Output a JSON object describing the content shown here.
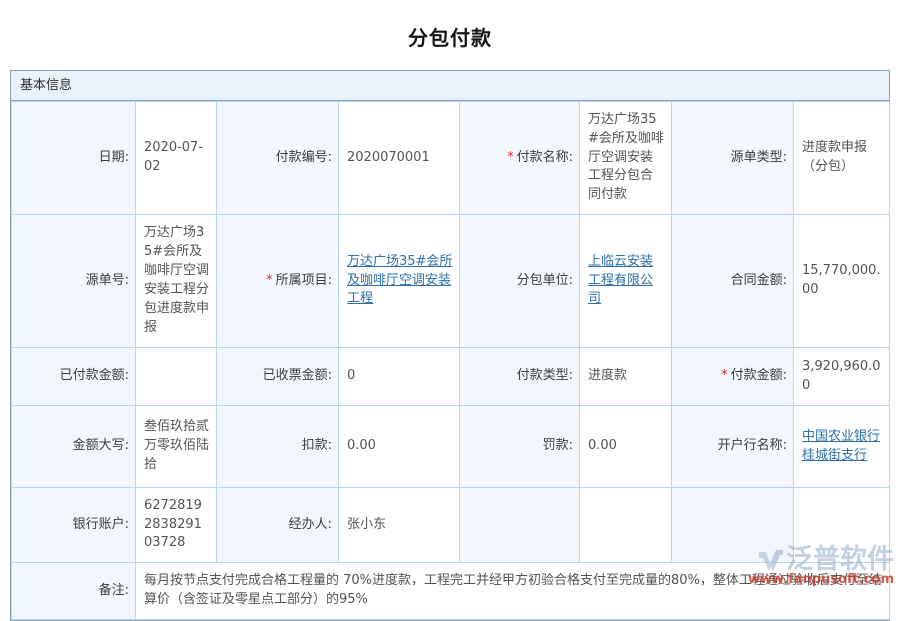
{
  "page": {
    "title": "分包付款"
  },
  "panel": {
    "header": "基本信息"
  },
  "form": {
    "rows": [
      {
        "cells": [
          {
            "label": "日期:",
            "value": "2020-07-02"
          },
          {
            "label": "付款编号:",
            "value": "2020070001"
          },
          {
            "label": "付款名称:",
            "mark": "*",
            "value": "万达广场35#会所及咖啡厅空调安装工程分包合同付款"
          },
          {
            "label": "源单类型:",
            "value": "进度款申报（分包）"
          }
        ]
      },
      {
        "cells": [
          {
            "label": "源单号:",
            "value": "万达广场35#会所及咖啡厅空调安装工程分包进度款申报"
          },
          {
            "label": "所属项目:",
            "mark": "*",
            "value": "万达广场35#会所及咖啡厅空调安装工程",
            "link": true
          },
          {
            "label": "分包单位:",
            "value": "上临云安装工程有限公司",
            "link": true
          },
          {
            "label": "合同金额:",
            "value": "15,770,000.00"
          }
        ]
      },
      {
        "cells": [
          {
            "label": "已付款金额:",
            "value": ""
          },
          {
            "label": "已收票金额:",
            "value": "0"
          },
          {
            "label": "付款类型:",
            "value": "进度款"
          },
          {
            "label": "付款金额:",
            "mark": "*",
            "value": "3,920,960.00"
          }
        ]
      },
      {
        "cells": [
          {
            "label": "金额大写:",
            "value": "叁佰玖拾贰万零玖佰陆拾"
          },
          {
            "label": "扣款:",
            "value": "0.00"
          },
          {
            "label": "罚款:",
            "value": "0.00"
          },
          {
            "label": "开户行名称:",
            "value": "中国农业银行桂城街支行",
            "link": true
          }
        ]
      },
      {
        "cells": [
          {
            "label": "银行账户:",
            "value": "6272819283829103728"
          },
          {
            "label": "经办人:",
            "value": "张小东"
          },
          {
            "label": "",
            "value": ""
          },
          {
            "label": "",
            "value": ""
          }
        ]
      }
    ],
    "remark": {
      "label": "备注:",
      "value": "每月按节点支付完成合格工程量的 70%进度款，工程完工并经甲方初验合格支付至完成量的80%，整体工程通过验收后支付至结算价（含签证及零星点工部分）的95%"
    }
  },
  "watermark": {
    "brand": "泛普软件",
    "url": "www.fanpusoft.com"
  },
  "colors": {
    "link": "#2e6fa7",
    "required_mark": "#e02b2b",
    "label_cell_bg": "#f1f7fd",
    "header_bg": "#e9f2fb",
    "inner_border": "#b9d7e8",
    "outer_border": "#87a0b4",
    "watermark_brand": "#9db4cc",
    "watermark_url": "#c8402f"
  }
}
